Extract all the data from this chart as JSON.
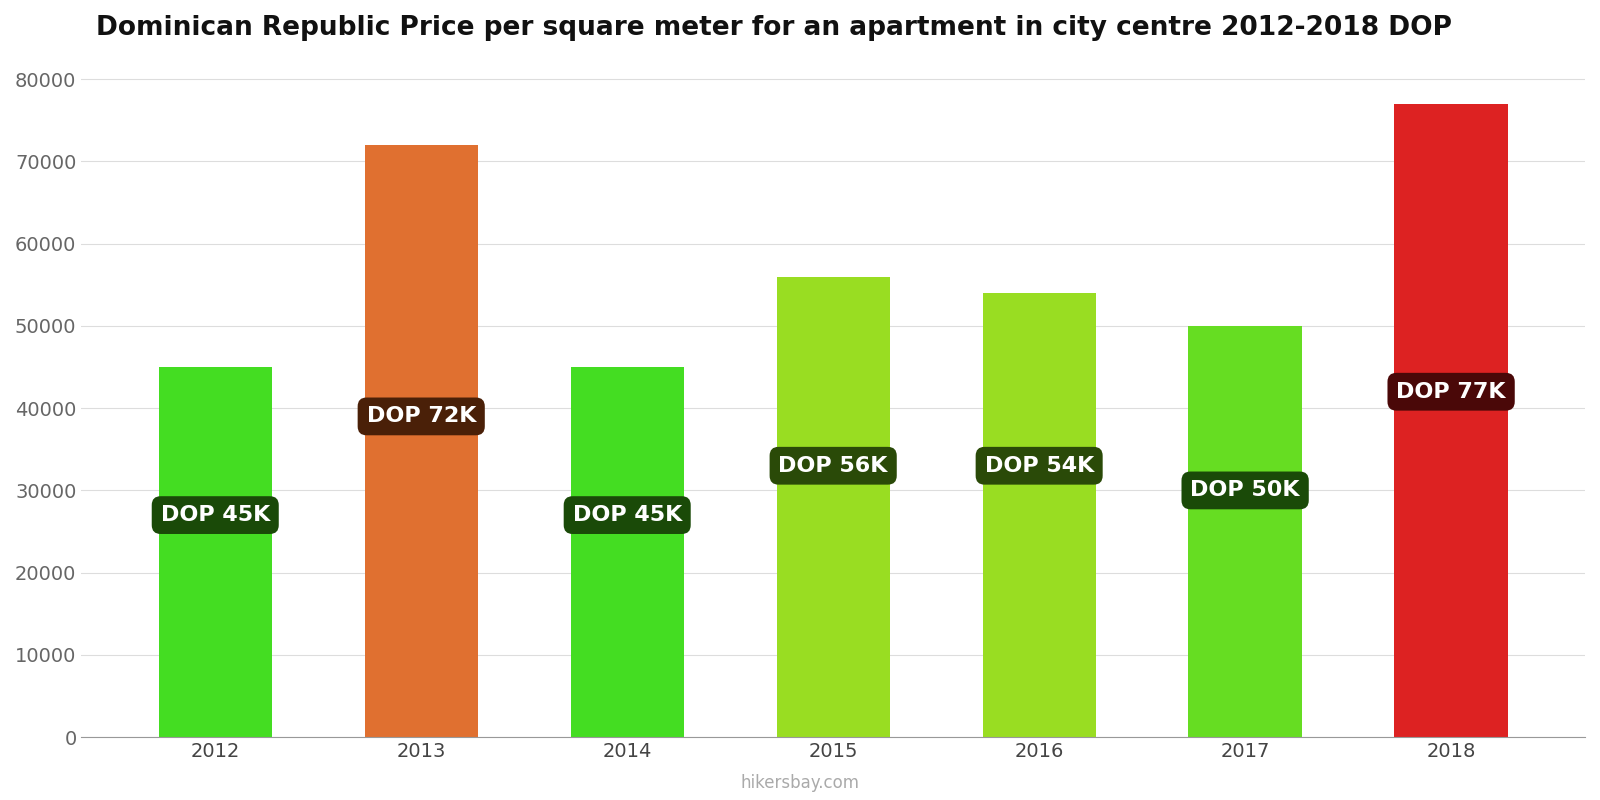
{
  "title": "Dominican Republic Price per square meter for an apartment in city centre 2012-2018 DOP",
  "categories": [
    2012,
    2013,
    2014,
    2015,
    2016,
    2017,
    2018
  ],
  "values": [
    45000,
    72000,
    45000,
    56000,
    54000,
    50000,
    77000
  ],
  "bar_colors": [
    "#44dd22",
    "#e07030",
    "#44dd22",
    "#99dd22",
    "#99dd22",
    "#66dd22",
    "#dd2222"
  ],
  "label_texts": [
    "DOP 45K",
    "DOP 72K",
    "DOP 45K",
    "DOP 56K",
    "DOP 54K",
    "DOP 50K",
    "DOP 77K"
  ],
  "label_box_colors": [
    "#1a4a08",
    "#4a2008",
    "#1a4a08",
    "#2a4a08",
    "#2a4a08",
    "#1a4a08",
    "#4a0808"
  ],
  "label_y_positions": [
    27000,
    39000,
    27000,
    33000,
    33000,
    30000,
    42000
  ],
  "ylim": [
    0,
    82000
  ],
  "yticks": [
    0,
    10000,
    20000,
    30000,
    40000,
    50000,
    60000,
    70000,
    80000
  ],
  "watermark": "hikersbay.com",
  "background_color": "#ffffff",
  "bar_width": 0.55,
  "title_fontsize": 19,
  "label_fontsize": 16,
  "tick_fontsize": 14
}
